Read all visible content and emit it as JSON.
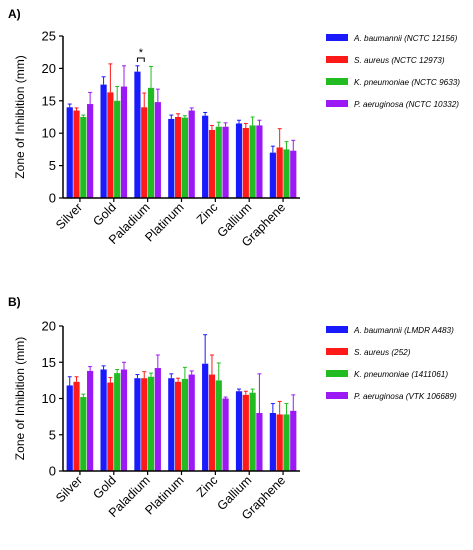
{
  "figure": {
    "panels": [
      {
        "label": "A)"
      },
      {
        "label": "B)"
      }
    ]
  },
  "colors": {
    "series": [
      "#1a1aff",
      "#ff1a1a",
      "#22bb22",
      "#9b19f5"
    ],
    "axis": "#000000",
    "errorbar": "#000000"
  },
  "chart_data": [
    {
      "type": "bar",
      "panel": "A)",
      "ylabel": "Zone of Inhibition (mm)",
      "xlabel": "",
      "ylim": [
        0,
        25
      ],
      "yticks": [
        0,
        5,
        10,
        15,
        20,
        25
      ],
      "categories": [
        "Silver",
        "Gold",
        "Paladium",
        "Platinum",
        "Zinc",
        "Gallium",
        "Graphene"
      ],
      "legend_position": "right",
      "series": [
        {
          "name": "A. baumannii (NCTC 12156)",
          "values": [
            14.0,
            17.5,
            19.5,
            12.2,
            12.7,
            11.5,
            7.0
          ],
          "errors": [
            0.5,
            1.2,
            0.9,
            0.6,
            0.5,
            0.5,
            1.0
          ]
        },
        {
          "name": "S. aureus (NCTC 12973)",
          "values": [
            13.5,
            16.3,
            14.0,
            12.5,
            10.5,
            10.8,
            7.8
          ],
          "errors": [
            0.4,
            4.4,
            2.2,
            0.5,
            0.7,
            0.7,
            2.9
          ]
        },
        {
          "name": "K. pneumoniae (NCTC 9633)",
          "values": [
            12.5,
            15.0,
            17.0,
            12.4,
            11.0,
            11.2,
            7.5
          ],
          "errors": [
            0.3,
            2.2,
            3.3,
            0.3,
            0.7,
            1.3,
            1.2
          ]
        },
        {
          "name": "P. aeruginosa (NCTC 10332)",
          "values": [
            14.5,
            17.2,
            14.8,
            13.5,
            11.0,
            11.2,
            7.3
          ],
          "errors": [
            1.8,
            3.2,
            2.0,
            0.4,
            0.6,
            0.8,
            1.6
          ]
        }
      ],
      "annotations": [
        {
          "text": "*",
          "between": [
            "Paladium: A. baumannii (NCTC 12156)",
            "Paladium: S. aureus (NCTC 12973)"
          ]
        }
      ]
    },
    {
      "type": "bar",
      "panel": "B)",
      "ylabel": "Zone of Inhibition (mm)",
      "xlabel": "",
      "ylim": [
        0,
        20
      ],
      "yticks": [
        0,
        5,
        10,
        15,
        20
      ],
      "categories": [
        "Silver",
        "Gold",
        "Paladium",
        "Platinum",
        "Zinc",
        "Gallium",
        "Graphene"
      ],
      "legend_position": "right",
      "series": [
        {
          "name": "A. baumannii (LMDR A483)",
          "values": [
            11.8,
            14.0,
            12.8,
            12.8,
            14.8,
            11.0,
            8.0
          ],
          "errors": [
            1.2,
            0.5,
            0.5,
            0.6,
            4.0,
            0.3,
            1.3
          ]
        },
        {
          "name": "S. aureus (252)",
          "values": [
            12.3,
            12.2,
            12.8,
            12.3,
            13.3,
            10.5,
            7.8
          ],
          "errors": [
            0.7,
            0.7,
            0.9,
            0.5,
            2.7,
            0.5,
            1.8
          ]
        },
        {
          "name": "K. pneumoniae (1411061)",
          "values": [
            10.2,
            13.5,
            13.0,
            12.7,
            12.5,
            10.8,
            7.8
          ],
          "errors": [
            0.4,
            0.5,
            0.5,
            1.6,
            2.4,
            0.5,
            1.5
          ]
        },
        {
          "name": "P. aeruginosa (VTK 106689)",
          "values": [
            13.8,
            14.0,
            14.2,
            13.3,
            10.0,
            8.0,
            8.3
          ],
          "errors": [
            0.6,
            1.0,
            1.8,
            0.5,
            0.2,
            5.4,
            2.2
          ]
        }
      ]
    }
  ]
}
